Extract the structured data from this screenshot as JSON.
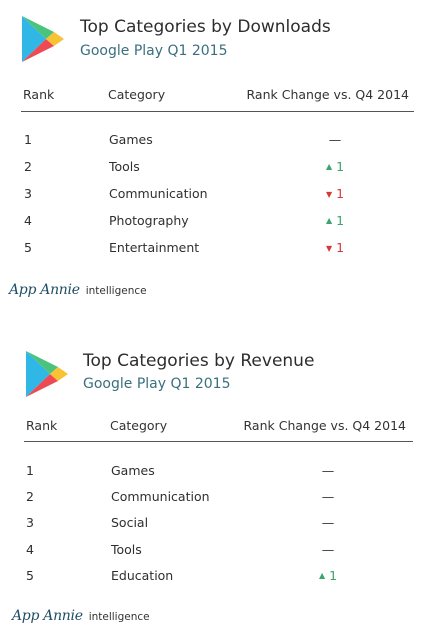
{
  "colors": {
    "up": "#3aa56a",
    "down": "#d23a3a",
    "subtitle": "#3a6f7f",
    "brand": "#1f4e66"
  },
  "icons": {
    "logo": "google-play-logo-icon",
    "up": "triangle-up-icon",
    "down": "triangle-down-icon"
  },
  "downloads": {
    "title": "Top Categories by Downloads",
    "subtitle": "Google Play Q1 2015",
    "headers": {
      "rank": "Rank",
      "category": "Category",
      "change": "Rank Change vs. Q4 2014"
    },
    "rows": [
      {
        "rank": "1",
        "category": "Games",
        "dash": "—",
        "value": ""
      },
      {
        "rank": "2",
        "category": "Tools",
        "dash": "",
        "value": "1",
        "dir": "up"
      },
      {
        "rank": "3",
        "category": "Communication",
        "dash": "",
        "value": "1",
        "dir": "down"
      },
      {
        "rank": "4",
        "category": "Photography",
        "dash": "",
        "value": "1",
        "dir": "up"
      },
      {
        "rank": "5",
        "category": "Entertainment",
        "dash": "",
        "value": "1",
        "dir": "down"
      }
    ],
    "brand": {
      "name": "App Annie",
      "suffix": "intelligence"
    }
  },
  "revenue": {
    "title": "Top Categories by Revenue",
    "subtitle": "Google Play Q1 2015",
    "headers": {
      "rank": "Rank",
      "category": "Category",
      "change": "Rank Change vs. Q4 2014"
    },
    "rows": [
      {
        "rank": "1",
        "category": "Games",
        "dash": "—",
        "value": ""
      },
      {
        "rank": "2",
        "category": "Communication",
        "dash": "—",
        "value": ""
      },
      {
        "rank": "3",
        "category": "Social",
        "dash": "—",
        "value": ""
      },
      {
        "rank": "4",
        "category": "Tools",
        "dash": "—",
        "value": ""
      },
      {
        "rank": "5",
        "category": "Education",
        "dash": "",
        "value": "1",
        "dir": "up"
      }
    ],
    "brand": {
      "name": "App Annie",
      "suffix": "intelligence"
    }
  }
}
